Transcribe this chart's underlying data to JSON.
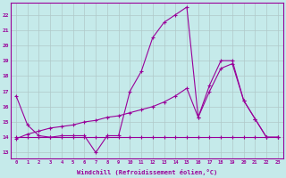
{
  "xlabel": "Windchill (Refroidissement éolien,°C)",
  "background_color": "#c5eaea",
  "line_color": "#990099",
  "grid_color": "#b0c8c8",
  "xlim": [
    -0.5,
    23.5
  ],
  "ylim": [
    12.6,
    22.8
  ],
  "xticks": [
    0,
    1,
    2,
    3,
    4,
    5,
    6,
    7,
    8,
    9,
    10,
    11,
    12,
    13,
    14,
    15,
    16,
    17,
    18,
    19,
    20,
    21,
    22,
    23
  ],
  "yticks": [
    13,
    14,
    15,
    16,
    17,
    18,
    19,
    20,
    21,
    22
  ],
  "hours": [
    0,
    1,
    2,
    3,
    4,
    5,
    6,
    7,
    8,
    9,
    10,
    11,
    12,
    13,
    14,
    15,
    16,
    17,
    18,
    19,
    20,
    21,
    22,
    23
  ],
  "line1": [
    16.7,
    14.8,
    14.1,
    14.0,
    14.1,
    14.1,
    14.1,
    13.0,
    14.1,
    14.1,
    17.0,
    18.3,
    20.5,
    21.5,
    22.0,
    22.5,
    15.3,
    17.4,
    19.0,
    19.0,
    16.4,
    15.2,
    14.0,
    14.0
  ],
  "line2": [
    14.0,
    14.0,
    14.0,
    14.0,
    14.0,
    14.0,
    14.0,
    14.0,
    14.0,
    14.0,
    14.0,
    14.0,
    14.0,
    14.0,
    14.0,
    14.0,
    14.0,
    14.0,
    14.0,
    14.0,
    14.0,
    14.0,
    14.0,
    14.0
  ],
  "line3": [
    13.9,
    14.2,
    14.4,
    14.6,
    14.7,
    14.8,
    15.0,
    15.1,
    15.3,
    15.4,
    15.6,
    15.8,
    16.0,
    16.3,
    16.7,
    17.2,
    15.3,
    17.0,
    18.5,
    18.8,
    16.4,
    15.2,
    14.0,
    14.0
  ]
}
